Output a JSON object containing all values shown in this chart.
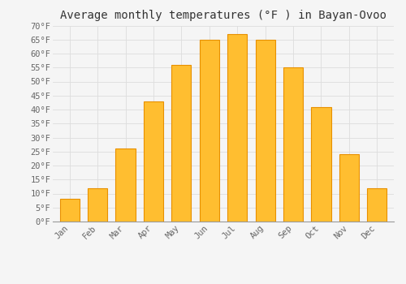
{
  "title": "Average monthly temperatures (°F ) in Bayan-Ovoo",
  "categories": [
    "Jan",
    "Feb",
    "Mar",
    "Apr",
    "May",
    "Jun",
    "Jul",
    "Aug",
    "Sep",
    "Oct",
    "Nov",
    "Dec"
  ],
  "values": [
    8,
    12,
    26,
    43,
    56,
    65,
    67,
    65,
    55,
    41,
    24,
    12
  ],
  "bar_color": "#FFBE30",
  "bar_edge_color": "#E89000",
  "background_color": "#f5f5f5",
  "plot_bg_color": "#f5f5f5",
  "grid_color": "#dddddd",
  "ylim": [
    0,
    70
  ],
  "yticks": [
    0,
    5,
    10,
    15,
    20,
    25,
    30,
    35,
    40,
    45,
    50,
    55,
    60,
    65,
    70
  ],
  "ylabel_suffix": "°F",
  "title_fontsize": 10,
  "tick_fontsize": 7.5,
  "font_family": "monospace"
}
